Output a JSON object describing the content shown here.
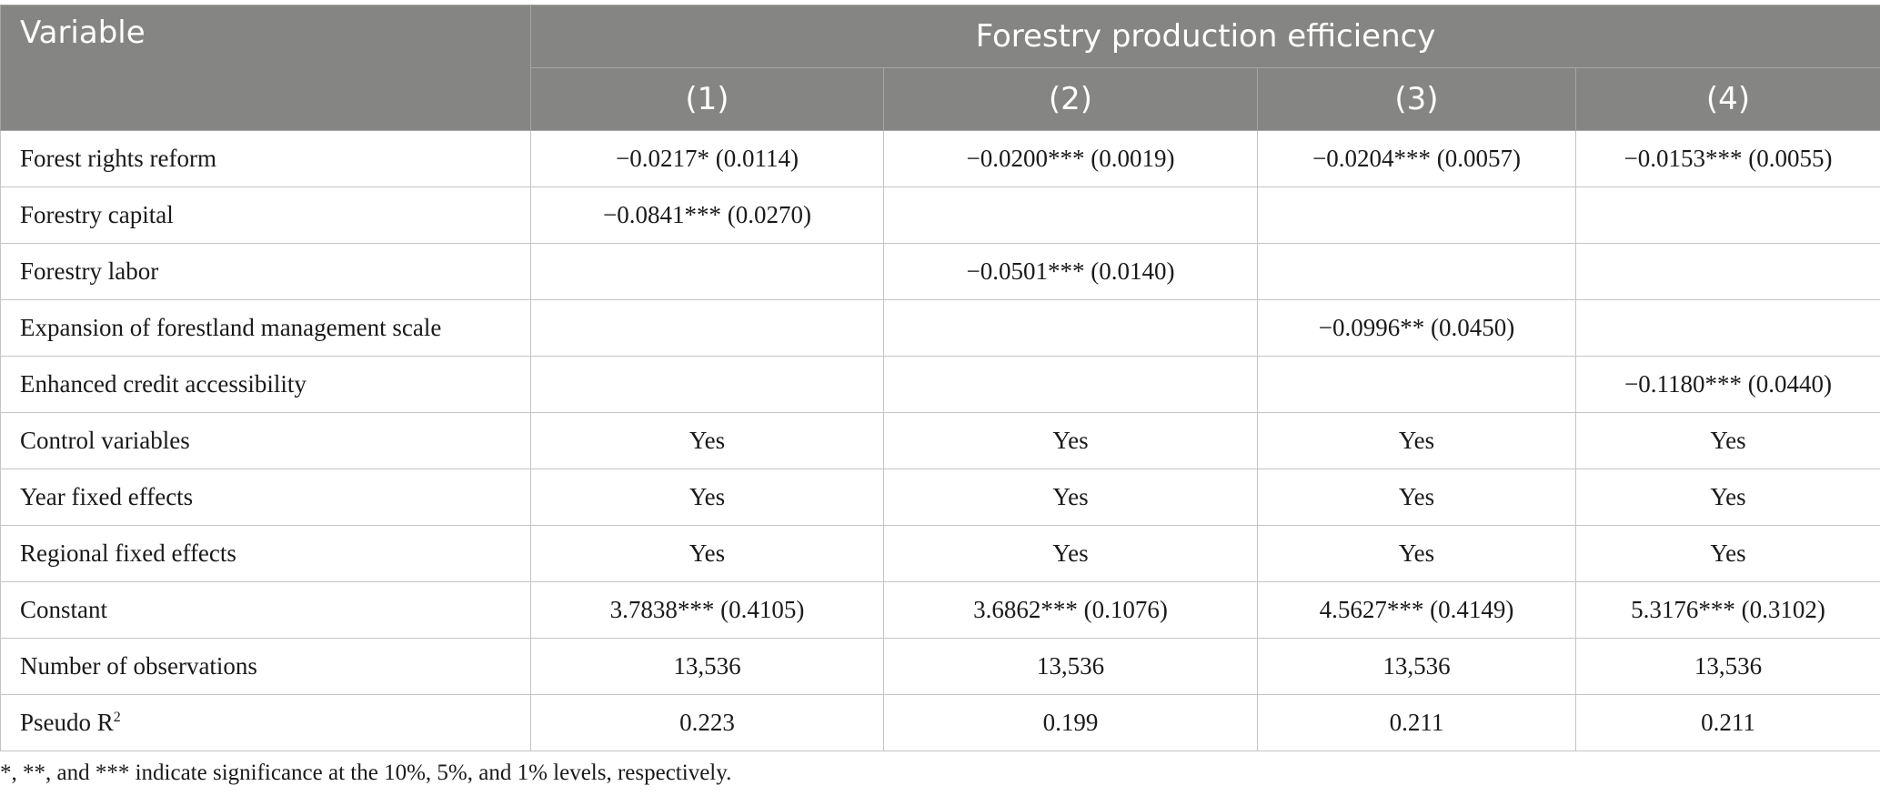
{
  "header": {
    "variable_label": "Variable",
    "group_label": "Forestry production efficiency",
    "columns": [
      "(1)",
      "(2)",
      "(3)",
      "(4)"
    ]
  },
  "rows": [
    {
      "label": "Forest rights reform",
      "cells": [
        "−0.0217* (0.0114)",
        "−0.0200*** (0.0019)",
        "−0.0204*** (0.0057)",
        "−0.0153*** (0.0055)"
      ]
    },
    {
      "label": "Forestry capital",
      "cells": [
        "−0.0841*** (0.0270)",
        "",
        "",
        ""
      ]
    },
    {
      "label": "Forestry labor",
      "cells": [
        "",
        "−0.0501*** (0.0140)",
        "",
        ""
      ]
    },
    {
      "label": "Expansion of forestland management scale",
      "cells": [
        "",
        "",
        "−0.0996** (0.0450)",
        ""
      ]
    },
    {
      "label": "Enhanced credit accessibility",
      "cells": [
        "",
        "",
        "",
        "−0.1180*** (0.0440)"
      ]
    },
    {
      "label": "Control variables",
      "cells": [
        "Yes",
        "Yes",
        "Yes",
        "Yes"
      ]
    },
    {
      "label": "Year fixed effects",
      "cells": [
        "Yes",
        "Yes",
        "Yes",
        "Yes"
      ]
    },
    {
      "label": "Regional fixed effects",
      "cells": [
        "Yes",
        "Yes",
        "Yes",
        "Yes"
      ]
    },
    {
      "label": "Constant",
      "cells": [
        "3.7838*** (0.4105)",
        "3.6862*** (0.1076)",
        "4.5627*** (0.4149)",
        "5.3176*** (0.3102)"
      ]
    },
    {
      "label": "Number of observations",
      "cells": [
        "13,536",
        "13,536",
        "13,536",
        "13,536"
      ]
    }
  ],
  "pseudo_row": {
    "label_main": "Pseudo R",
    "label_sup": "2",
    "cells": [
      "0.223",
      "0.199",
      "0.211",
      "0.211"
    ]
  },
  "footnote": "*, **, and *** indicate significance at the 10%, 5%, and 1% levels, respectively."
}
